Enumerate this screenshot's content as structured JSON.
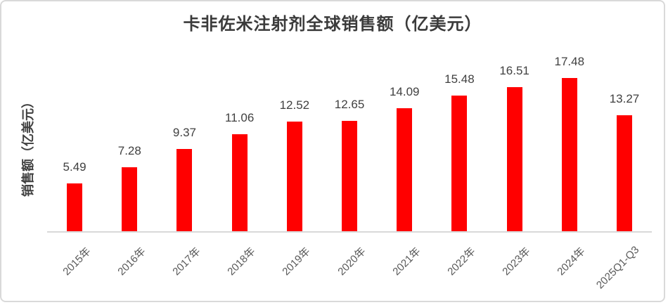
{
  "chart_data": {
    "type": "bar",
    "title": "卡非佐米注射剂全球销售额（亿美元）",
    "ylabel": "销售额（亿美元）",
    "xlabel": "",
    "categories": [
      "2015年",
      "2016年",
      "2017年",
      "2018年",
      "2019年",
      "2020年",
      "2021年",
      "2022年",
      "2023年",
      "2024年",
      "2025Q1-Q3"
    ],
    "values": [
      5.49,
      7.28,
      9.37,
      11.06,
      12.52,
      12.65,
      14.09,
      15.48,
      16.51,
      17.48,
      13.27
    ],
    "value_labels": [
      "5.49",
      "7.28",
      "9.37",
      "11.06",
      "12.52",
      "12.65",
      "14.09",
      "15.48",
      "16.51",
      "17.48",
      "13.27"
    ],
    "series_name": "销售额",
    "bar_color": "#FF0000",
    "title_color": "#3B3B3B",
    "value_label_color": "#404040",
    "axis_tick_color": "#595959",
    "axis_line_color": "#D9D9D9",
    "ylim": [
      0,
      20
    ],
    "grid": false,
    "legend": false,
    "x_tick_rotation_deg": -45
  }
}
